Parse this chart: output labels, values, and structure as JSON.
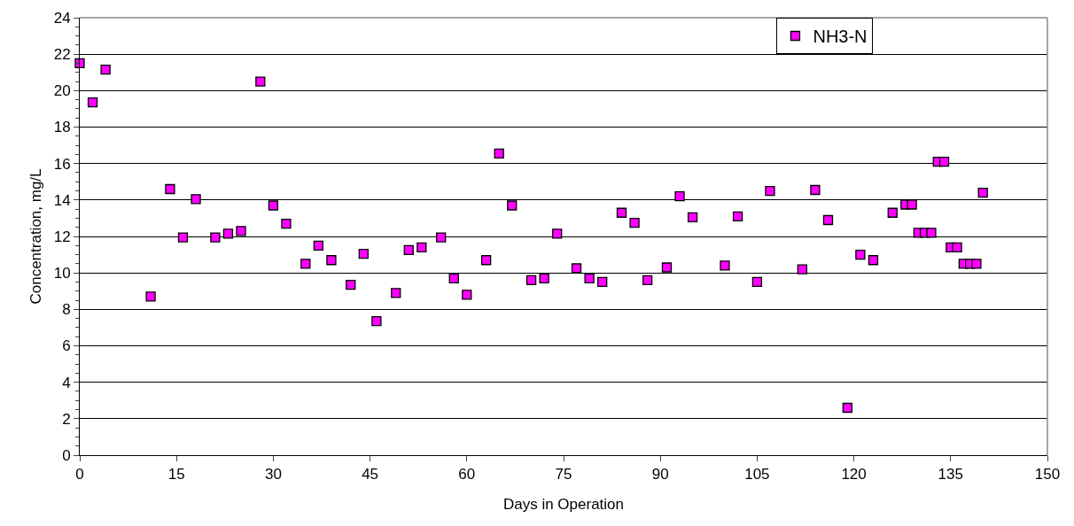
{
  "chart_data": {
    "type": "scatter",
    "xlabel": "Days in Operation",
    "ylabel": "Concentration, mg/L",
    "x": [
      0,
      2,
      4,
      11,
      14,
      16,
      18,
      21,
      23,
      25,
      28,
      30,
      32,
      35,
      37,
      39,
      42,
      44,
      46,
      49,
      51,
      53,
      56,
      58,
      60,
      63,
      65,
      67,
      70,
      72,
      74,
      77,
      79,
      81,
      84,
      86,
      88,
      91,
      93,
      95,
      100,
      102,
      105,
      107,
      112,
      114,
      116,
      119,
      121,
      123,
      126,
      128,
      129,
      130,
      131,
      132,
      133,
      134,
      135,
      136,
      137,
      138,
      139,
      140
    ],
    "series": [
      {
        "name": "NH3-N",
        "color": "#ff00ff",
        "values": [
          21.5,
          19.35,
          21.15,
          8.7,
          14.6,
          11.95,
          14.05,
          11.95,
          12.15,
          12.3,
          20.5,
          13.7,
          12.7,
          10.5,
          11.5,
          10.7,
          9.35,
          11.05,
          7.35,
          8.9,
          11.25,
          11.4,
          11.95,
          9.7,
          8.8,
          10.7,
          16.55,
          13.7,
          9.6,
          9.7,
          12.15,
          10.25,
          9.7,
          9.5,
          13.3,
          12.75,
          9.6,
          10.3,
          14.2,
          13.05,
          10.4,
          13.1,
          9.5,
          14.5,
          10.2,
          14.55,
          12.9,
          2.6,
          11.0,
          10.7,
          13.3,
          13.75,
          13.75,
          12.2,
          12.2,
          12.2,
          16.1,
          16.1,
          11.4,
          11.4,
          10.5,
          10.5,
          10.5,
          14.4
        ]
      }
    ],
    "xlim": [
      0,
      150
    ],
    "xticks": [
      0,
      15,
      30,
      45,
      60,
      75,
      90,
      105,
      120,
      135,
      150
    ],
    "ylim": [
      0,
      24
    ],
    "yticks": [
      0,
      2,
      4,
      6,
      8,
      10,
      12,
      14,
      16,
      18,
      20,
      22,
      24
    ],
    "grid": "y",
    "legend": "top right",
    "marker": "square"
  }
}
